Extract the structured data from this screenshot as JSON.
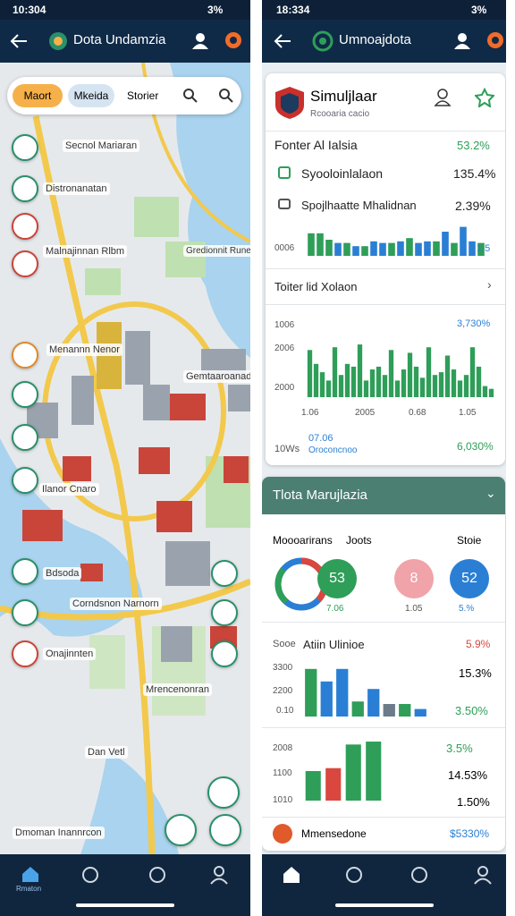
{
  "left": {
    "status_time": "10:304",
    "status_battery": "3%",
    "title": "Dota Undamzia",
    "chips": [
      "Maort",
      "Mkeida",
      "Storier"
    ],
    "map_labels": [
      "Secnol Mariaran",
      "Distronanatan",
      "Malnajinnan Rlbm",
      "Gredionnit Rune",
      "Menannn Nenor",
      "Gemtaaroanadet",
      "Ilanor Cnaro",
      "Bdsoda",
      "Corndsnon Narnorn",
      "Onajinnten",
      "Mrencenonran",
      "Dan Vetl",
      "Dmoman Inannrcon"
    ],
    "nav_label": "Rmaton"
  },
  "right": {
    "status_time": "18:334",
    "status_battery": "3%",
    "title": "Umnoajdota",
    "card1": {
      "title": "Simuljlaar",
      "subtitle": "Rcooaria cacio",
      "section": "Fonter Al Ialsia",
      "section_value": "53.2%",
      "rows": [
        {
          "label": "Syooloinlalaon",
          "value": "135.4%"
        },
        {
          "label": "Spojlhaatte Mhalidnan",
          "value": "2.39%"
        }
      ],
      "mini_left": "0006",
      "mini_right": "1.5",
      "mini_chart": {
        "values": [
          70,
          70,
          50,
          40,
          40,
          30,
          30,
          45,
          40,
          40,
          45,
          55,
          40,
          45,
          45,
          75,
          40,
          90,
          45,
          40
        ],
        "colors": [
          "#2e9e58",
          "#2e9e58",
          "#2e9e58",
          "#2a7fd4",
          "#2e9e58",
          "#2a7fd4",
          "#2e9e58",
          "#2a7fd4",
          "#2a7fd4",
          "#2e9e58",
          "#2a7fd4",
          "#2e9e58",
          "#2a7fd4",
          "#2a7fd4",
          "#2e9e58",
          "#2a7fd4",
          "#2e9e58",
          "#2a7fd4",
          "#2a7fd4",
          "#2e9e58"
        ]
      },
      "section2": "Toiter lid Xolaon",
      "chart_labels": [
        "1006",
        "2006",
        "2000"
      ],
      "chart_value": "3,730%",
      "x_labels": [
        "1.06",
        "2005",
        "0.68",
        "1.05"
      ],
      "chart": {
        "values": [
          85,
          60,
          45,
          30,
          90,
          40,
          60,
          55,
          95,
          30,
          50,
          55,
          40,
          85,
          30,
          50,
          80,
          55,
          35,
          90,
          40,
          45,
          75,
          50,
          30,
          40,
          90,
          55,
          20,
          15
        ],
        "color": "#2e9e58"
      },
      "foot_left": "10Ws",
      "foot_mid": "07.06",
      "foot_sub": "Oroconcnoo",
      "foot_value": "6,030%"
    },
    "card2": {
      "title": "Tlota Marujlazia",
      "tabs": [
        "Moooarirans",
        "Joots",
        "Stoie"
      ],
      "circles": [
        {
          "value": "53",
          "caption": "7.06"
        },
        {
          "value": "8",
          "caption": "1.05"
        },
        {
          "value": "52",
          "caption": "5.%"
        }
      ],
      "section": "Sooe",
      "section_title": "Atiin Ulinioe",
      "section_value": "5.9%",
      "chart_a_labels": [
        "3300",
        "2200",
        "0.10"
      ],
      "chart_a_values": [
        "15.3%",
        "3.50%"
      ],
      "chart_a": {
        "values": [
          95,
          70,
          95,
          30,
          55,
          25,
          25,
          15
        ],
        "colors": [
          "#2e9e58",
          "#2a7fd4",
          "#2a7fd4",
          "#2e9e58",
          "#2a7fd4",
          "#6b7b8a",
          "#2e9e58",
          "#2a7fd4"
        ]
      },
      "chart_b_labels": [
        "2008",
        "1100",
        "1010"
      ],
      "chart_b_values": [
        "3.5%",
        "14.53%",
        "1.50%"
      ],
      "chart_b": {
        "values": [
          50,
          55,
          95,
          100
        ],
        "colors": [
          "#2e9e58",
          "#d9473e",
          "#2e9e58",
          "#2e9e58"
        ]
      },
      "footer": "Mmensedone",
      "footer_value": "$5330%"
    }
  }
}
